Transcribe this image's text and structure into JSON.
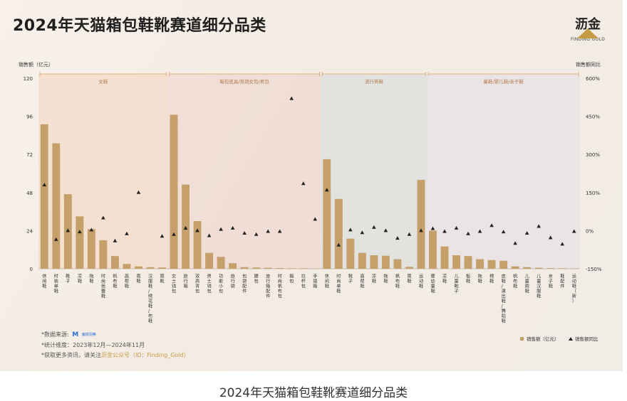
{
  "title": "2024年天猫箱包鞋靴赛道细分品类",
  "caption": "2024年天猫箱包鞋靴赛道细分品类",
  "logo": {
    "text": "沥金",
    "sub": "FINDING GOLD"
  },
  "notes": {
    "source_prefix": "*数据来源:",
    "source_brand": "M",
    "source_brand_sub": "魔镜洞察",
    "period": "*统计维度：2023年12月—2024年11月",
    "more_prefix": "*获取更多资讯，请关注",
    "more_accent": "沥金公众号（ID：Finding_Gold）"
  },
  "colors": {
    "bar": "#c5a06a",
    "marker": "#222222",
    "group_line": "#d9a46b"
  },
  "chart_data": {
    "type": "bar",
    "y_left_label": "销售额（亿元）",
    "y_right_label": "销售额同比",
    "ylim": [
      0,
      120
    ],
    "y_ticks": [
      "0",
      "24",
      "48",
      "72",
      "96",
      "120"
    ],
    "y2lim": [
      -150,
      600
    ],
    "y2_ticks": [
      "-150%",
      "0%",
      "150%",
      "300%",
      "450%",
      "600%"
    ],
    "legend": [
      {
        "name": "销售额（亿元）",
        "marker": "square"
      },
      {
        "name": "销售额同比",
        "marker": "triangle"
      }
    ],
    "groups": [
      {
        "name": "女鞋",
        "start": 0,
        "end": 10,
        "bg": "#f2d6bf"
      },
      {
        "name": "箱包皮具/热销女包/男包",
        "start": 11,
        "end": 23,
        "bg": "#ecd3cc"
      },
      {
        "name": "流行男鞋",
        "start": 24,
        "end": 32,
        "bg": "#d3dcda"
      },
      {
        "name": "童鞋/婴儿鞋/亲子鞋",
        "start": 33,
        "end": 45,
        "bg": "#e3dfe5"
      }
    ],
    "categories": [
      "休闲鞋",
      "时装单鞋",
      "靴子",
      "凉鞋",
      "拖鞋",
      "时尚芭蕾鞋",
      "帆布鞋",
      "高帮鞋",
      "雨鞋",
      "汉服鞋/绣花鞋/布鞋",
      "雨靴",
      "女士钱包",
      "旅行箱",
      "双肩背包",
      "男士钱包",
      "功能小包",
      "旅行袋",
      "包袋配件",
      "腰包",
      "旅行箱配件",
      "时尚帆布包",
      "箱包",
      "拉杆包",
      "手提箱",
      "休闲鞋",
      "时尚单鞋",
      "靴子",
      "高帮鞋",
      "凉鞋",
      "拖鞋",
      "帆布鞋",
      "雨鞋",
      "运动鞋",
      "婴幼童鞋",
      "凉鞋",
      "儿童靴子",
      "板鞋",
      "拖鞋",
      "棉鞋",
      "皮鞋/演出鞋/舞蹈鞋",
      "帆布鞋",
      "儿童雨鞋",
      "儿童汉服鞋",
      "亲子鞋",
      "鞋配件",
      "运动鞋（新）"
    ],
    "values": [
      91,
      79,
      47,
      33,
      25,
      18,
      8,
      3,
      1.5,
      1,
      0.8,
      97,
      53,
      30,
      10,
      7.5,
      3.5,
      1,
      0.8,
      0.6,
      0.4,
      0.3,
      0.3,
      0.2,
      69,
      44,
      19,
      10,
      8.5,
      8.2,
      6,
      1.2,
      56,
      24,
      14,
      8.5,
      8,
      6,
      5.5,
      5,
      1.5,
      1,
      0.6,
      0.4,
      0.3,
      0.2
    ],
    "yoy_percent": [
      180,
      -35,
      0,
      -5,
      3,
      50,
      -40,
      -12,
      150,
      null,
      -22,
      -15,
      10,
      0,
      -20,
      5,
      10,
      -10,
      -15,
      -3,
      -3,
      520,
      185,
      45,
      160,
      -57,
      3,
      -8,
      13,
      0,
      -30,
      -15,
      0,
      8,
      -3,
      10,
      -12,
      -3,
      20,
      -5,
      -50,
      -10,
      17,
      -28,
      -53,
      -3
    ]
  }
}
